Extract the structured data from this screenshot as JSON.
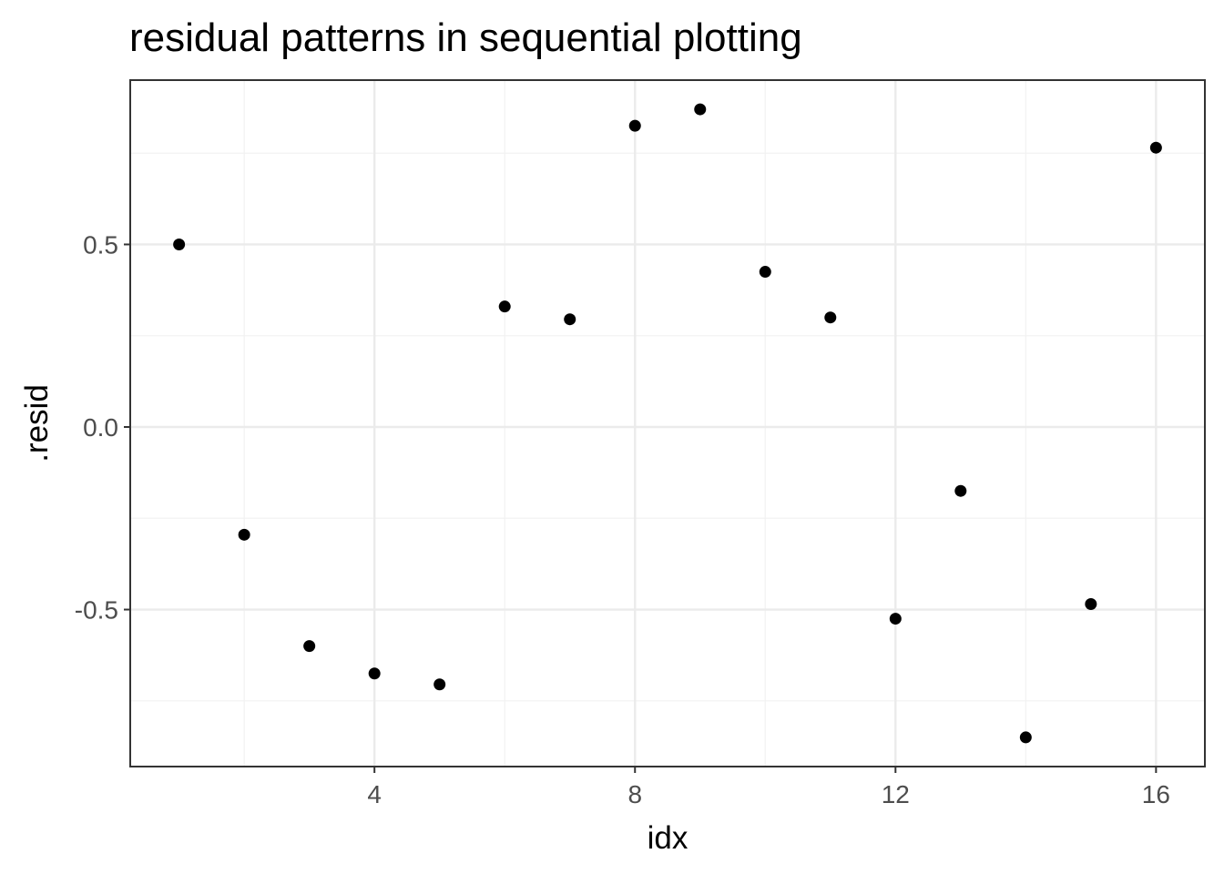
{
  "chart_data": {
    "type": "scatter",
    "title": "residual patterns in sequential plotting",
    "xlabel": "idx",
    "ylabel": ".resid",
    "xlim": [
      0.25,
      16.75
    ],
    "ylim": [
      -0.93,
      0.95
    ],
    "x_ticks": [
      4,
      8,
      12,
      16
    ],
    "x_tick_labels": [
      "4",
      "8",
      "12",
      "16"
    ],
    "x_minor_ticks": [
      2,
      6,
      10,
      14
    ],
    "y_ticks": [
      0.5,
      0.0,
      -0.5
    ],
    "y_tick_labels": [
      "0.5",
      "0.0",
      "-0.5"
    ],
    "y_minor_ticks": [
      0.75,
      0.25,
      -0.25,
      -0.75
    ],
    "grid": true,
    "point_color": "#000000",
    "points": [
      {
        "x": 1,
        "y": 0.5
      },
      {
        "x": 2,
        "y": -0.295
      },
      {
        "x": 3,
        "y": -0.6
      },
      {
        "x": 4,
        "y": -0.675
      },
      {
        "x": 5,
        "y": -0.705
      },
      {
        "x": 6,
        "y": 0.33
      },
      {
        "x": 7,
        "y": 0.295
      },
      {
        "x": 8,
        "y": 0.825
      },
      {
        "x": 9,
        "y": 0.87
      },
      {
        "x": 10,
        "y": 0.425
      },
      {
        "x": 11,
        "y": 0.3
      },
      {
        "x": 12,
        "y": -0.525
      },
      {
        "x": 13,
        "y": -0.175
      },
      {
        "x": 14,
        "y": -0.85
      },
      {
        "x": 15,
        "y": -0.485
      },
      {
        "x": 16,
        "y": 0.765
      }
    ]
  }
}
